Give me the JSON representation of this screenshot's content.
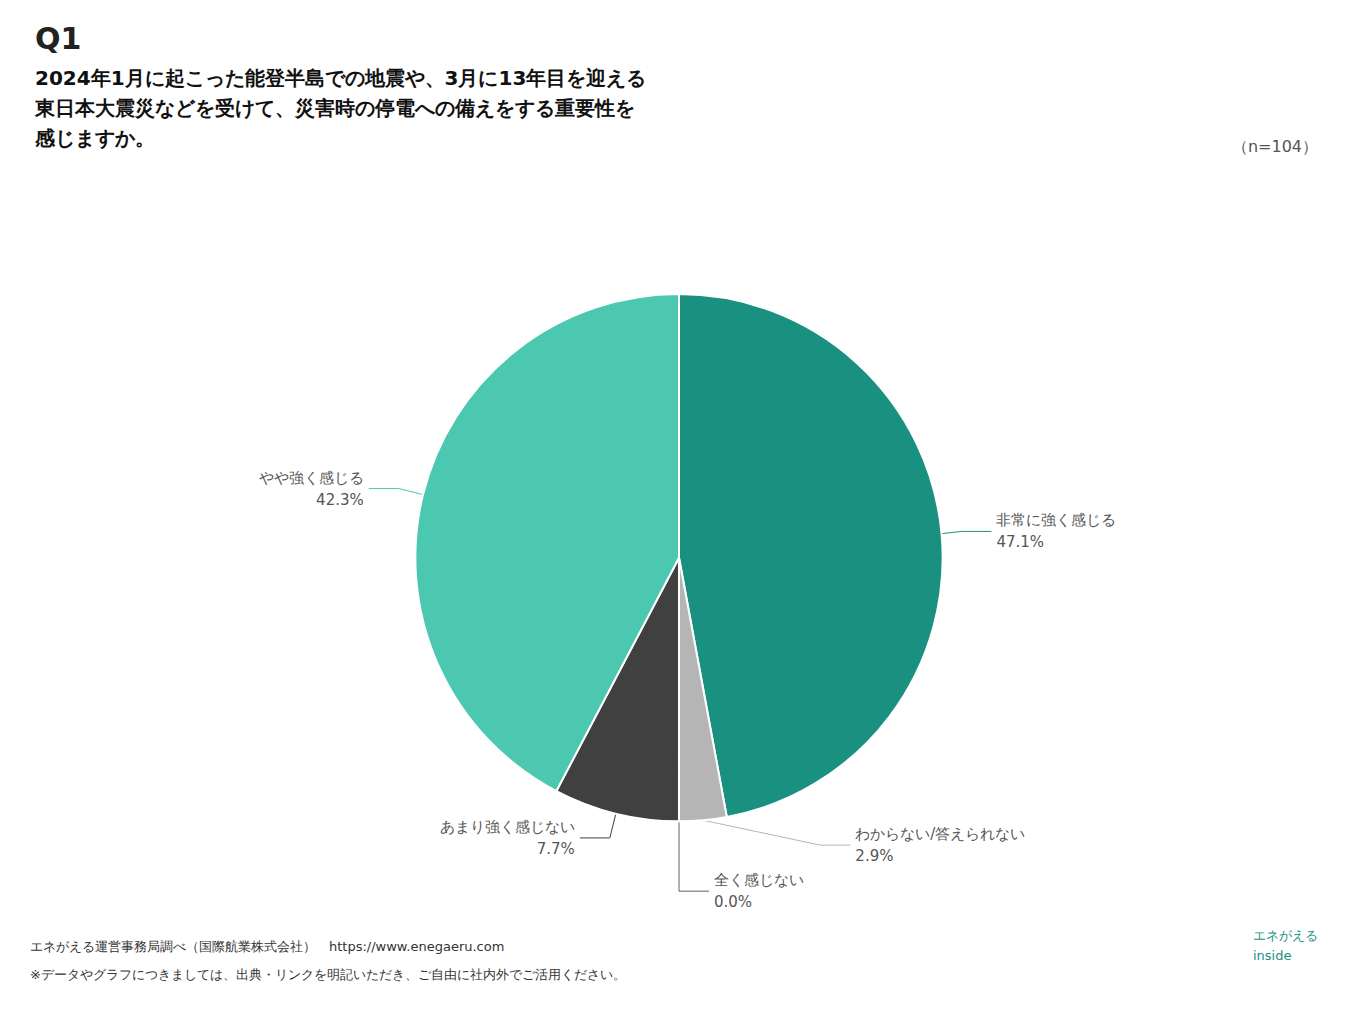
{
  "chart_data": {
    "type": "pie",
    "title": "Q1",
    "subtitle": "2024年1月に起こった能登半島での地震や、3月に13年目を迎える\n東日本大震災などを受けて、災害時の停電への備えをする重要性を\n感じますか。",
    "categories": [
      "非常に強く感じる",
      "わからない/答えられない",
      "全く感じない",
      "あまり強く感じない",
      "やや強く感じる"
    ],
    "values": [
      47.1,
      2.9,
      0.001,
      7.7,
      42.3
    ],
    "value_labels": [
      "47.1%",
      "2.9%",
      "0.0%",
      "7.7%",
      "42.3%"
    ],
    "colors": [
      "#1a9080",
      "#b5b5b5",
      "#606060",
      "#404040",
      "#4dc8b0"
    ],
    "data_labels": true,
    "annotations": [
      "（n=104）",
      "エネがえる運営事務局調べ（国際航業株式会社）　https://www.enegaeru.com",
      "※データやグラフにつきましては、出典・リンクを明記いただき、ご自由に社内外でご活用ください。",
      "エネがえる\ninside"
    ]
  }
}
